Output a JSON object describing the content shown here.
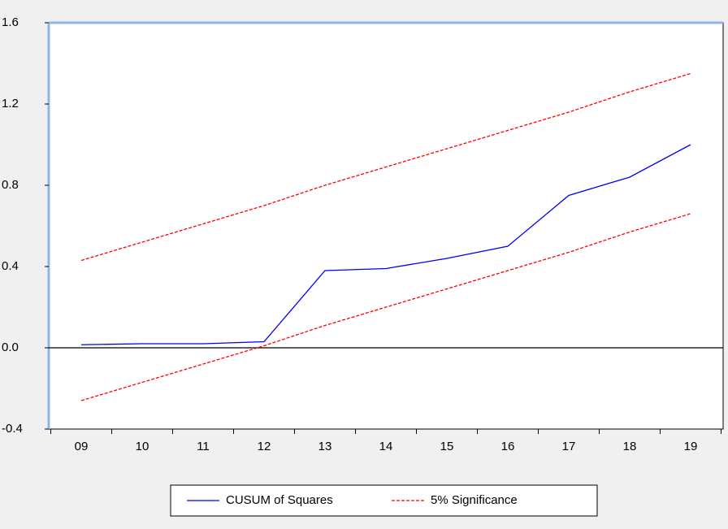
{
  "chart_data": {
    "type": "line",
    "categories": [
      "09",
      "10",
      "11",
      "12",
      "13",
      "14",
      "15",
      "16",
      "17",
      "18",
      "19"
    ],
    "series": [
      {
        "name": "CUSUM of Squares",
        "color": "#0000ff",
        "values": [
          0.015,
          0.02,
          0.02,
          0.03,
          0.38,
          0.39,
          0.44,
          0.5,
          0.75,
          0.84,
          1.0
        ]
      },
      {
        "name": "5% Significance",
        "color": "#ff0000",
        "dashed": true,
        "upper": [
          0.43,
          0.52,
          0.61,
          0.7,
          0.8,
          0.89,
          0.98,
          1.07,
          1.16,
          1.26,
          1.35
        ],
        "lower": [
          -0.26,
          -0.17,
          -0.08,
          0.01,
          0.11,
          0.2,
          0.29,
          0.38,
          0.47,
          0.57,
          0.66
        ]
      }
    ],
    "ylim": [
      -0.4,
      1.6
    ],
    "yticks": [
      -0.4,
      0.4,
      0.8,
      1.2,
      1.6,
      {
        "value": 0,
        "label": "0.0"
      }
    ],
    "zero_line": true,
    "legend": "bottom"
  }
}
